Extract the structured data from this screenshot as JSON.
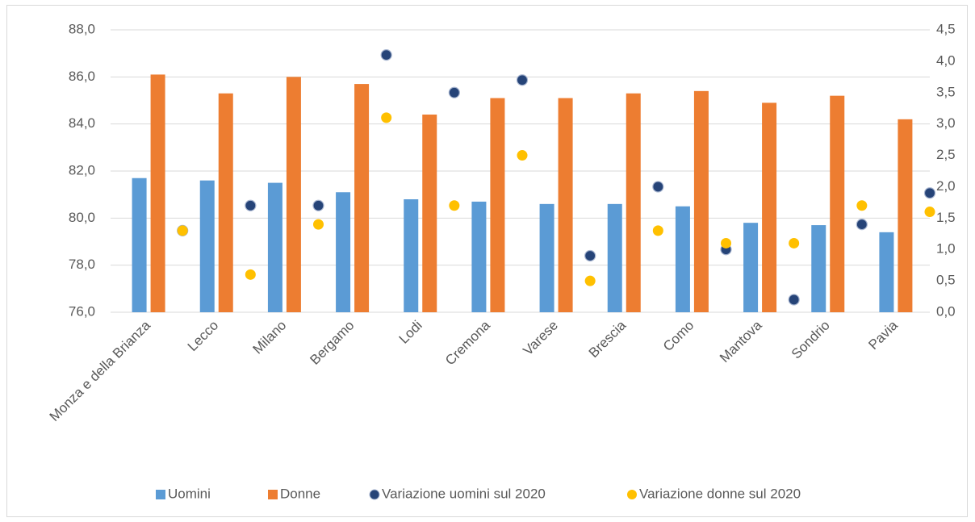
{
  "chart_data": {
    "type": "bar-scatter",
    "categories": [
      "Monza e della Brianza",
      "Lecco",
      "Milano",
      "Bergamo",
      "Lodi",
      "Cremona",
      "Varese",
      "Brescia",
      "Como",
      "Mantova",
      "Sondrio",
      "Pavia"
    ],
    "series": [
      {
        "name": "Uomini",
        "type": "bar",
        "color": "#5b9bd5",
        "values": [
          81.7,
          81.6,
          81.5,
          81.1,
          80.8,
          80.7,
          80.6,
          80.6,
          80.5,
          79.8,
          79.7,
          79.4
        ]
      },
      {
        "name": "Donne",
        "type": "bar",
        "color": "#ed7d31",
        "values": [
          86.1,
          85.3,
          86.0,
          85.7,
          84.4,
          85.1,
          85.1,
          85.3,
          85.4,
          84.9,
          85.2,
          84.2
        ]
      },
      {
        "name": "Variazione uomini sul 2020",
        "type": "scatter",
        "axis": "y2",
        "color": "#264478",
        "values": [
          1.3,
          1.7,
          1.7,
          4.1,
          3.5,
          3.7,
          0.9,
          2.0,
          1.0,
          0.2,
          1.4,
          1.9
        ]
      },
      {
        "name": "Variazione donne sul 2020",
        "type": "scatter",
        "axis": "y2",
        "color": "#ffc000",
        "values": [
          1.3,
          0.6,
          1.4,
          3.1,
          1.7,
          2.5,
          0.5,
          1.3,
          1.1,
          1.1,
          1.7,
          1.6
        ]
      }
    ],
    "ylim": [
      76,
      88
    ],
    "yticks": [
      {
        "value": 76,
        "label": "76,0"
      },
      {
        "value": 78,
        "label": "78,0"
      },
      {
        "value": 80,
        "label": "80,0"
      },
      {
        "value": 82,
        "label": "82,0"
      },
      {
        "value": 84,
        "label": "84,0"
      },
      {
        "value": 86,
        "label": "86,0"
      },
      {
        "value": 88,
        "label": "88,0"
      }
    ],
    "y2lim": [
      0,
      4.5
    ],
    "y2ticks": [
      {
        "value": 0,
        "label": "0,0"
      },
      {
        "value": 0.5,
        "label": "0,5"
      },
      {
        "value": 1,
        "label": "1,0"
      },
      {
        "value": 1.5,
        "label": "1,5"
      },
      {
        "value": 2,
        "label": "2,0"
      },
      {
        "value": 2.5,
        "label": "2,5"
      },
      {
        "value": 3,
        "label": "3,0"
      },
      {
        "value": 3.5,
        "label": "3,5"
      },
      {
        "value": 4,
        "label": "4,0"
      },
      {
        "value": 4.5,
        "label": "4,5"
      }
    ],
    "grid": true,
    "legend": "bottom"
  }
}
